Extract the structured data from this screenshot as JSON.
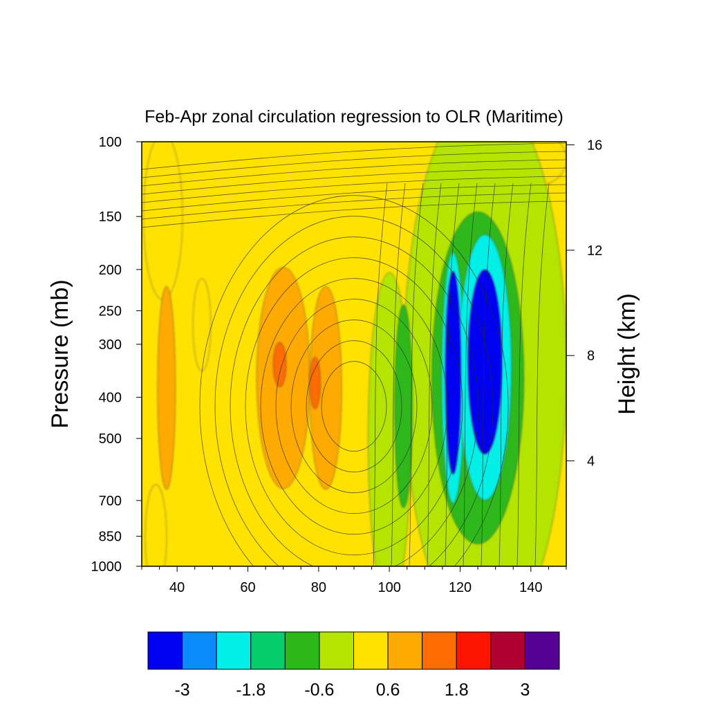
{
  "chart_data": {
    "type": "heatmap",
    "title": "Feb-Apr zonal circulation regression to OLR (Maritime)",
    "xlabel": "",
    "ylabel": "Pressure (mb)",
    "y2label": "Height (km)",
    "xlim": [
      30,
      150
    ],
    "ylim": [
      1000,
      100
    ],
    "y_scale": "log",
    "x_ticks": [
      40,
      60,
      80,
      100,
      120,
      140
    ],
    "y_ticks": [
      100,
      150,
      200,
      250,
      300,
      400,
      500,
      700,
      850,
      1000
    ],
    "y2_ticks": [
      16,
      12,
      8,
      4
    ],
    "colorbar": {
      "colors": [
        "#0000f0",
        "#0a8cff",
        "#00efe6",
        "#06cd6c",
        "#2db81a",
        "#b4e500",
        "#ffe200",
        "#ffaa00",
        "#ff6c00",
        "#ff1400",
        "#b00030",
        "#540093"
      ],
      "tick_labels": [
        "-3",
        "-1.8",
        "-0.6",
        "0.6",
        "1.8",
        "3"
      ]
    },
    "field_regions": [
      {
        "value": -3.6,
        "x": 118,
        "p": 350,
        "rx": 2.2,
        "ry": 0.55
      },
      {
        "value": -3.6,
        "x": 127,
        "p": 330,
        "rx": 4.8,
        "ry": 0.5
      },
      {
        "value": -2.4,
        "x": 118,
        "p": 360,
        "rx": 3.2,
        "ry": 0.68
      },
      {
        "value": -2.4,
        "x": 127,
        "p": 340,
        "rx": 7.5,
        "ry": 0.72
      },
      {
        "value": -1.2,
        "x": 125,
        "p": 360,
        "rx": 13,
        "ry": 0.9
      },
      {
        "value": -1.2,
        "x": 104,
        "p": 420,
        "rx": 2.5,
        "ry": 0.55
      },
      {
        "value": -0.6,
        "x": 127,
        "p": 340,
        "rx": 23,
        "ry": 1.5
      },
      {
        "value": -0.6,
        "x": 100,
        "p": 500,
        "rx": 6,
        "ry": 0.9
      },
      {
        "value": 0.3,
        "x": 36,
        "p": 150,
        "rx": 5.5,
        "ry": 0.45
      },
      {
        "value": 0.3,
        "x": 47,
        "p": 270,
        "rx": 2.5,
        "ry": 0.25
      },
      {
        "value": 0.3,
        "x": 142,
        "p": 110,
        "rx": 8,
        "ry": 0.14
      },
      {
        "value": 0.3,
        "x": 34,
        "p": 850,
        "rx": 3,
        "ry": 0.28
      },
      {
        "value": 0.9,
        "x": 70,
        "p": 360,
        "rx": 7.5,
        "ry": 0.6
      },
      {
        "value": 0.9,
        "x": 82,
        "p": 380,
        "rx": 4.5,
        "ry": 0.55
      },
      {
        "value": 0.9,
        "x": 37,
        "p": 380,
        "rx": 2.5,
        "ry": 0.55
      },
      {
        "value": 1.5,
        "x": 69,
        "p": 335,
        "rx": 1.8,
        "ry": 0.12
      },
      {
        "value": 1.5,
        "x": 79,
        "p": 370,
        "rx": 1.5,
        "ry": 0.14
      }
    ]
  }
}
